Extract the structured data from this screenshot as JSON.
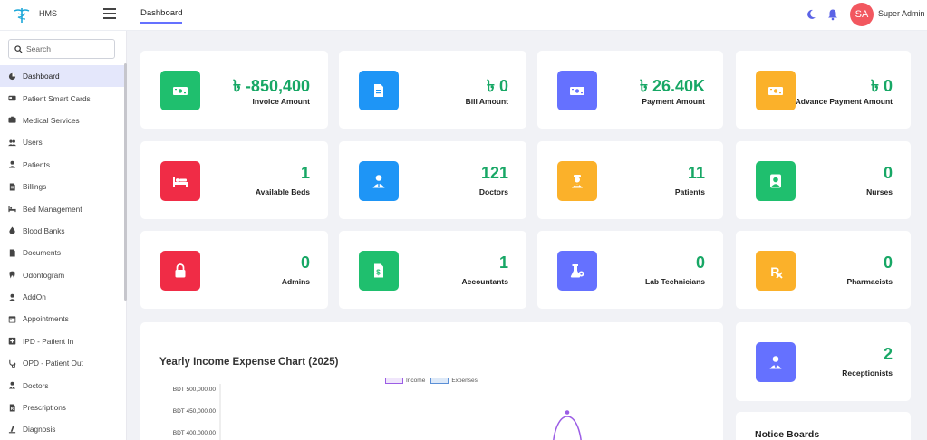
{
  "app": {
    "name": "HMS"
  },
  "header": {
    "tab": "Dashboard",
    "avatar_initials": "SA",
    "user_name": "Super Admin ˅"
  },
  "search": {
    "placeholder": "Search"
  },
  "sidebar": {
    "items": [
      {
        "label": "Dashboard",
        "icon": "dashboard-icon",
        "active": true
      },
      {
        "label": "Patient Smart Cards",
        "icon": "card-icon"
      },
      {
        "label": "Medical Services",
        "icon": "services-icon"
      },
      {
        "label": "Users",
        "icon": "users-icon"
      },
      {
        "label": "Patients",
        "icon": "patient-icon"
      },
      {
        "label": "Billings",
        "icon": "billing-icon"
      },
      {
        "label": "Bed Management",
        "icon": "bed-icon"
      },
      {
        "label": "Blood Banks",
        "icon": "blood-drop-icon"
      },
      {
        "label": "Documents",
        "icon": "document-icon"
      },
      {
        "label": "Odontogram",
        "icon": "tooth-icon"
      },
      {
        "label": "AddOn",
        "icon": "addon-icon"
      },
      {
        "label": "Appointments",
        "icon": "calendar-icon"
      },
      {
        "label": "IPD - Patient In",
        "icon": "ipd-icon"
      },
      {
        "label": "OPD - Patient Out",
        "icon": "stethoscope-icon"
      },
      {
        "label": "Doctors",
        "icon": "doctor-icon"
      },
      {
        "label": "Prescriptions",
        "icon": "prescription-icon"
      },
      {
        "label": "Diagnosis",
        "icon": "diagnosis-icon"
      }
    ]
  },
  "colors": {
    "green": "#1fbf6e",
    "blue": "#1e95f6",
    "purple": "#6571ff",
    "orange": "#fbb12a",
    "red": "#f02c46",
    "value_green": "#17a765"
  },
  "cards": [
    {
      "value": "৳ -850,400",
      "label": "Invoice Amount",
      "icon": "money-icon",
      "color": "#1fbf6e"
    },
    {
      "value": "৳ 0",
      "label": "Bill Amount",
      "icon": "document-icon",
      "color": "#1e95f6"
    },
    {
      "value": "৳ 26.40K",
      "label": "Payment Amount",
      "icon": "money-icon",
      "color": "#6571ff"
    },
    {
      "value": "৳ 0",
      "label": "Advance Payment Amount",
      "icon": "money-icon",
      "color": "#fbb12a"
    },
    {
      "value": "1",
      "label": "Available Beds",
      "icon": "bed-icon",
      "color": "#f02c46"
    },
    {
      "value": "121",
      "label": "Doctors",
      "icon": "doctor-icon",
      "color": "#1e95f6"
    },
    {
      "value": "11",
      "label": "Patients",
      "icon": "patient-icon",
      "color": "#fbb12a"
    },
    {
      "value": "0",
      "label": "Nurses",
      "icon": "nurse-icon",
      "color": "#1fbf6e"
    },
    {
      "value": "0",
      "label": "Admins",
      "icon": "lock-icon",
      "color": "#f02c46"
    },
    {
      "value": "1",
      "label": "Accountants",
      "icon": "invoice-icon",
      "color": "#1fbf6e"
    },
    {
      "value": "0",
      "label": "Lab Technicians",
      "icon": "lab-icon",
      "color": "#6571ff"
    },
    {
      "value": "0",
      "label": "Pharmacists",
      "icon": "prescription-icon",
      "color": "#fbb12a"
    },
    {
      "value": "2",
      "label": "Receptionists",
      "icon": "receptionist-icon",
      "color": "#6571ff"
    }
  ],
  "notice": {
    "title": "Notice Boards"
  },
  "chart_data": {
    "type": "line",
    "title": "Yearly Income Expense Chart (2025)",
    "series": [
      {
        "name": "Income",
        "color": "#9b5de5"
      },
      {
        "name": "Expenses",
        "color": "#5b8fd6"
      }
    ],
    "y_tick_labels": [
      "BDT 500,000.00",
      "BDT 450,000.00",
      "BDT 400,000.00"
    ],
    "peak_value": 450000
  }
}
